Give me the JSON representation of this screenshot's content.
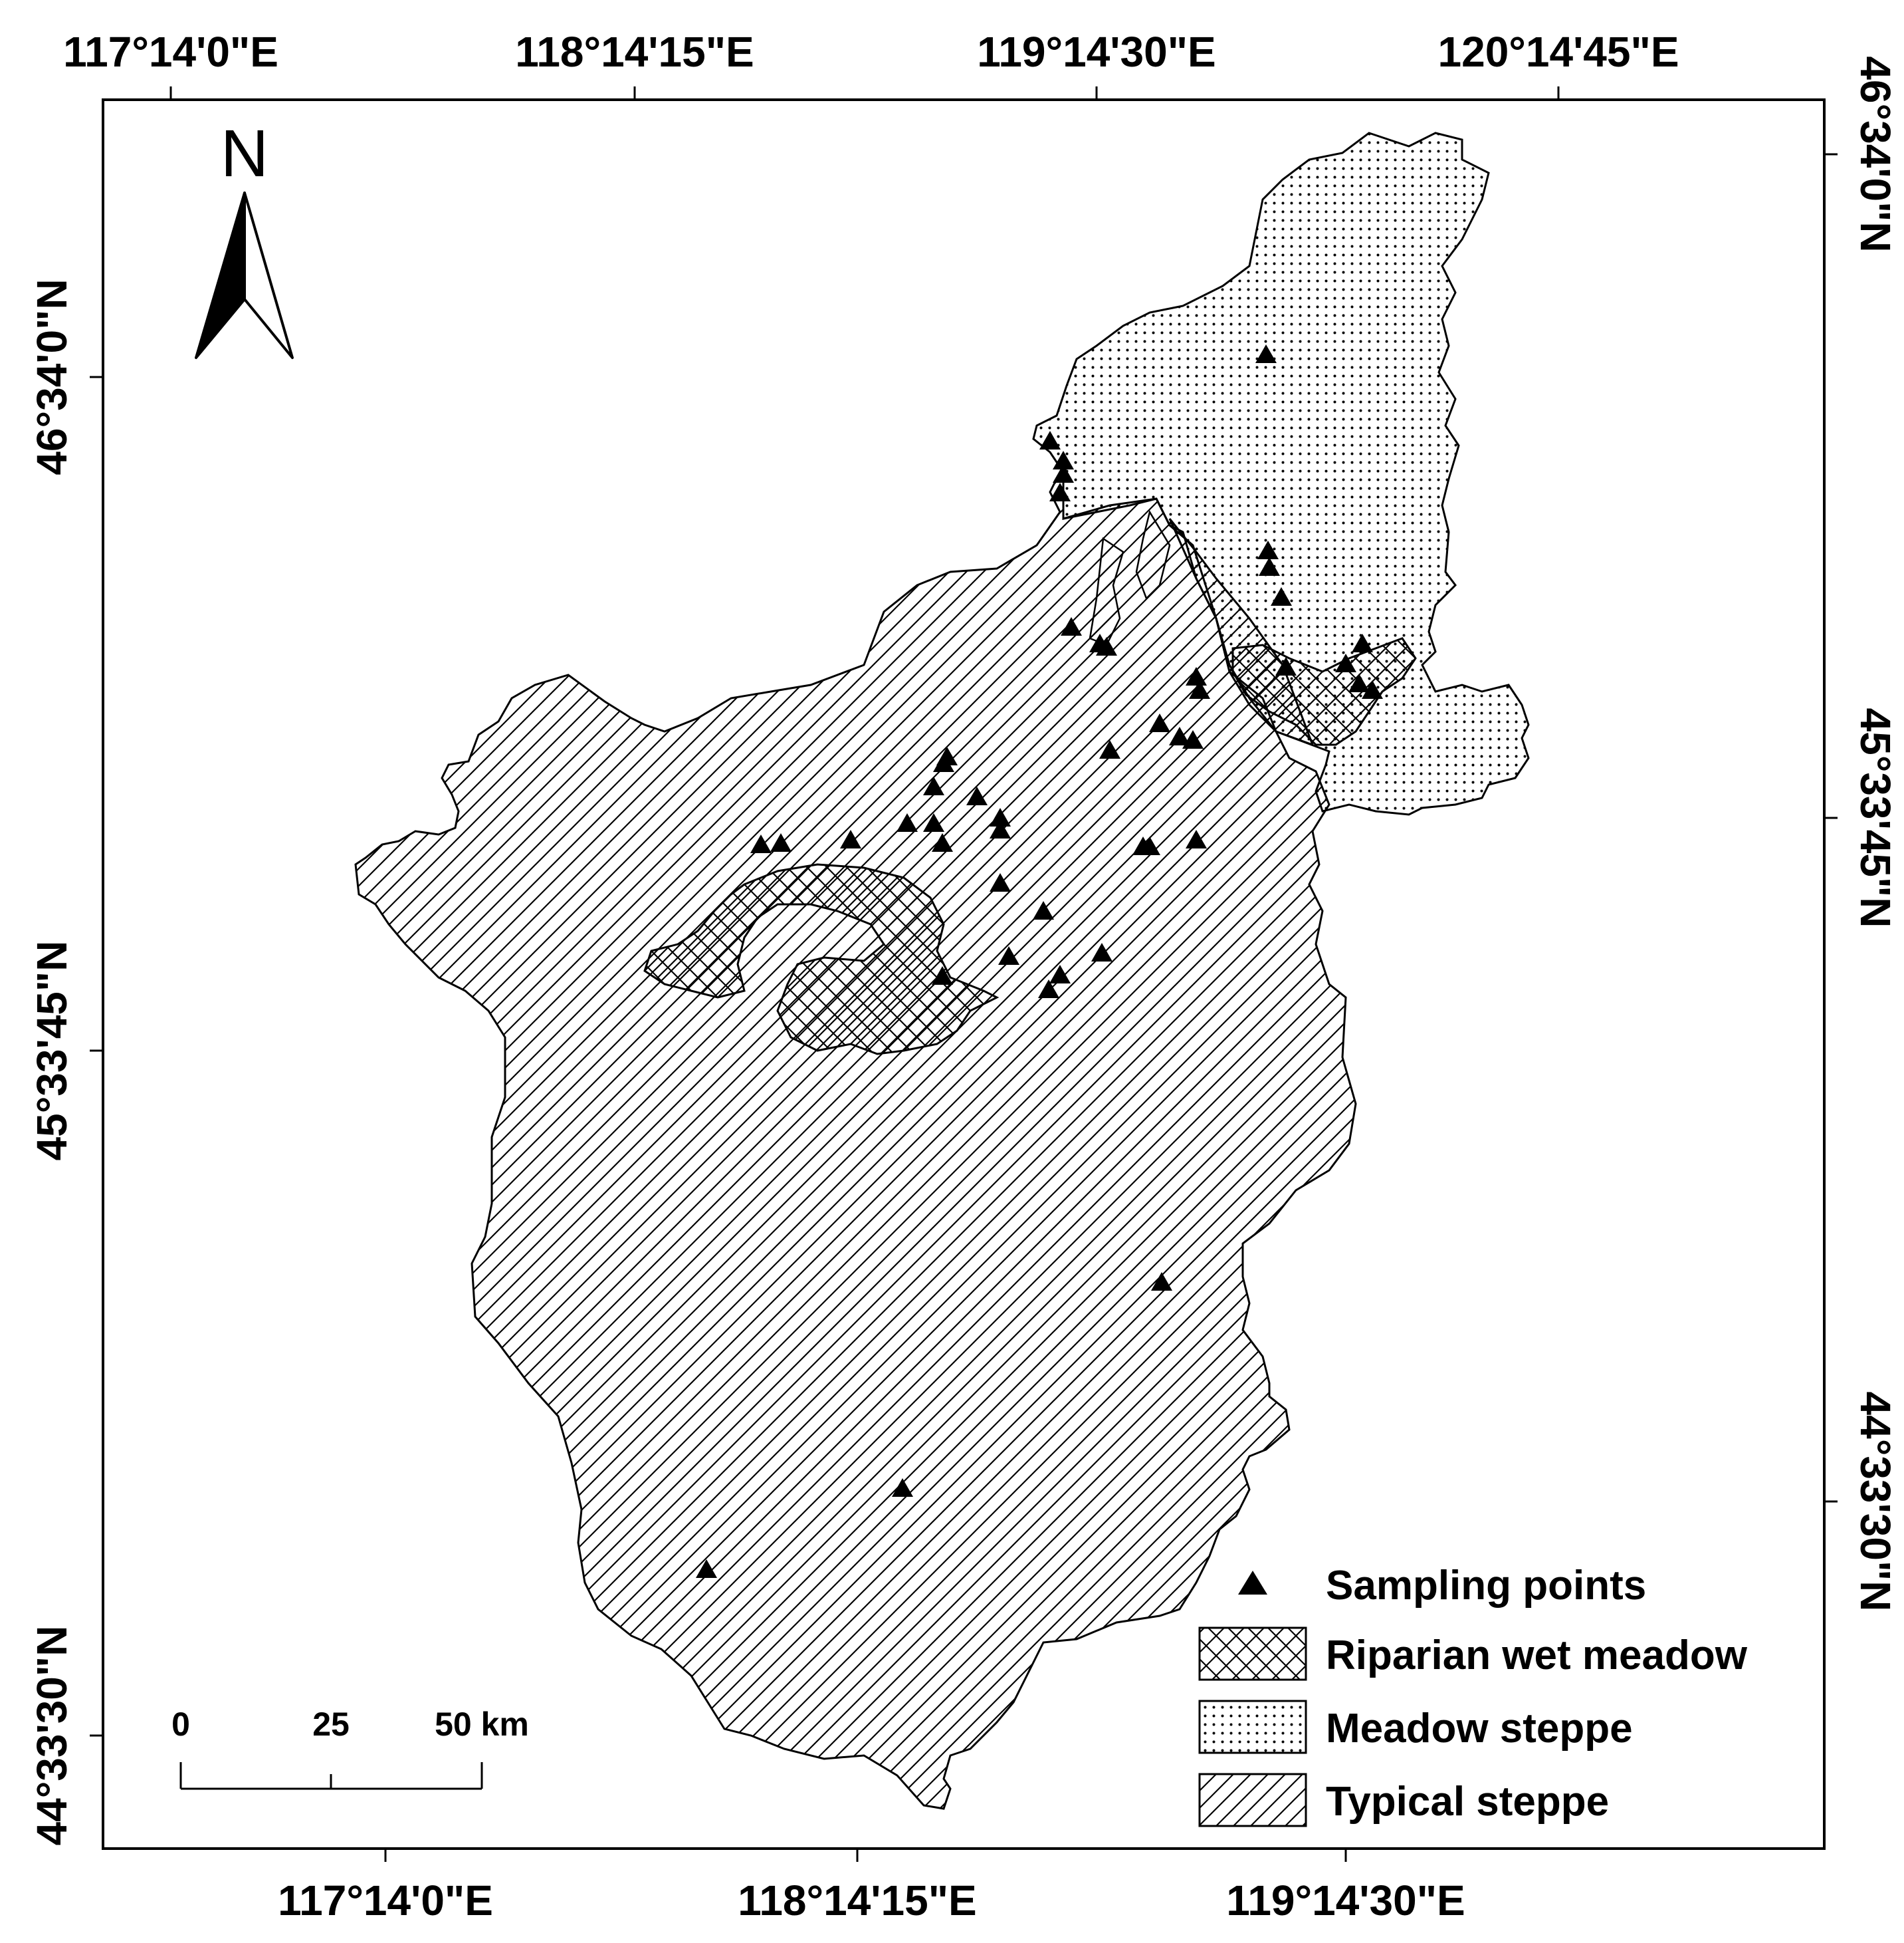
{
  "map": {
    "top_ticks": [
      "117°14'0\"E",
      "118°14'15\"E",
      "119°14'30\"E",
      "120°14'45\"E"
    ],
    "bottom_ticks": [
      "117°14'0\"E",
      "118°14'15\"E",
      "119°14'30\"E"
    ],
    "left_ticks": [
      "46°34'0\"N",
      "45°33'45\"N",
      "44°33'30\"N"
    ],
    "right_ticks": [
      "46°34'0\"N",
      "45°33'45\"N",
      "44°33'30\"N"
    ],
    "north_arrow": {
      "label": "N",
      "icon": "north-arrow-icon"
    },
    "scale_bar": {
      "labels": [
        "0",
        "25",
        "50 km"
      ]
    },
    "legend": {
      "items": [
        {
          "label": "Sampling points",
          "symbol": "triangle"
        },
        {
          "label": "Riparian wet meadow",
          "symbol": "crosshatch"
        },
        {
          "label": "Meadow steppe",
          "symbol": "dots"
        },
        {
          "label": "Typical steppe",
          "symbol": "diagonal"
        }
      ]
    },
    "colors": {
      "ink": "#000000",
      "background": "#ffffff"
    }
  }
}
